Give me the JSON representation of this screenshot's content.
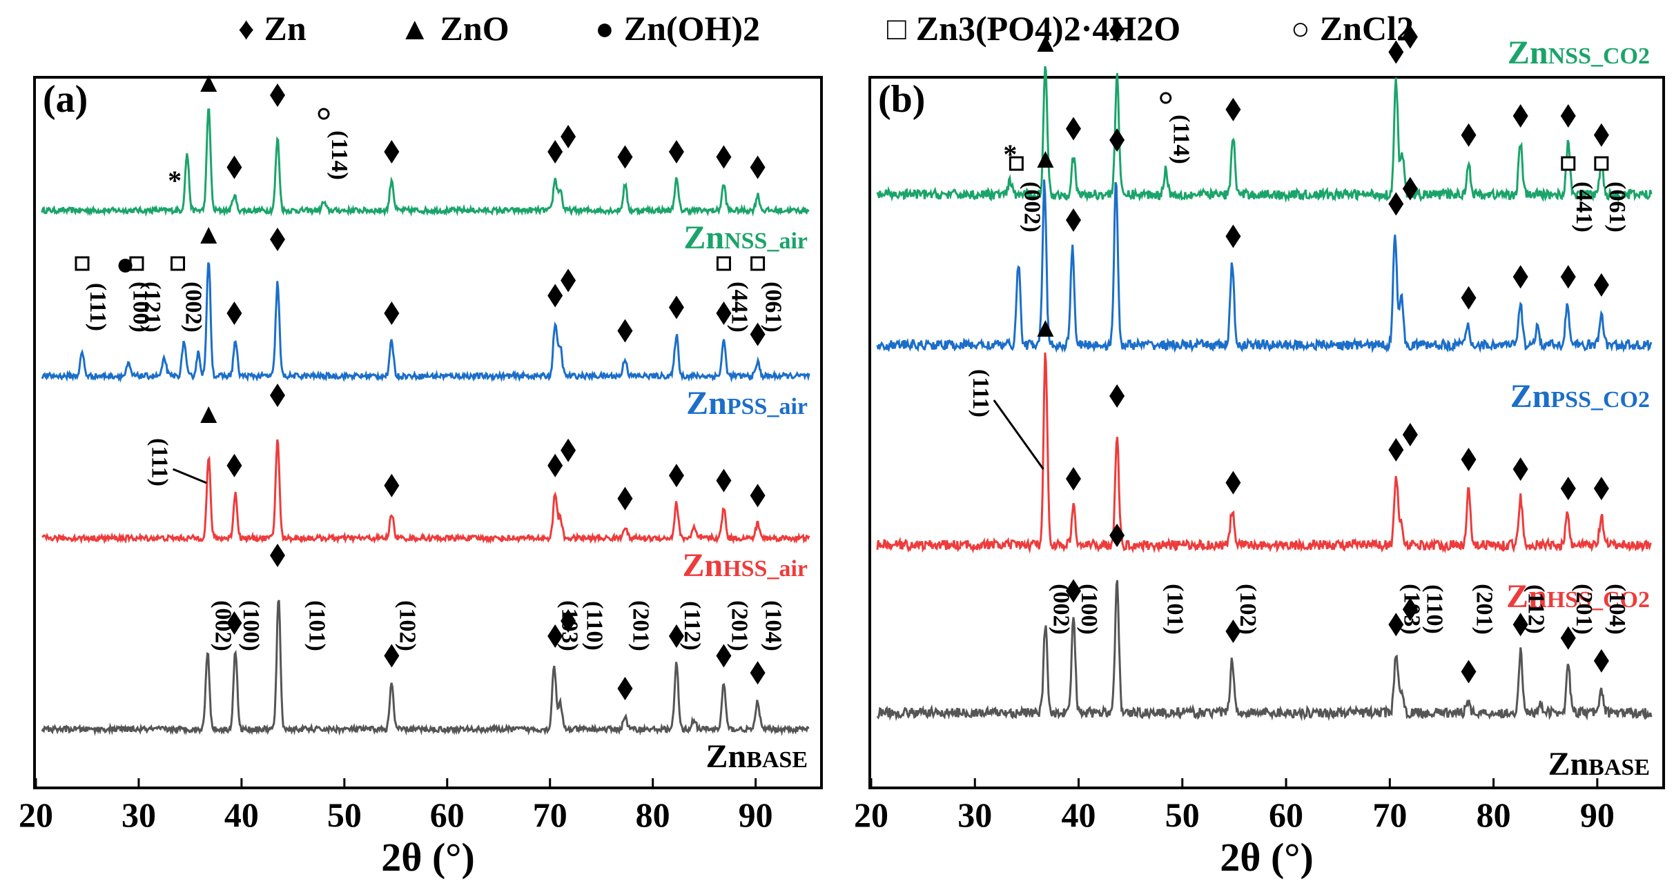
{
  "legend": [
    {
      "symbol": "♦",
      "label": "Zn",
      "sub": ""
    },
    {
      "symbol": "▲",
      "label": "ZnO",
      "sub": ""
    },
    {
      "symbol": "●",
      "label": "Zn(OH)2",
      "sub": ""
    },
    {
      "symbol": "□",
      "label": "Zn3(PO4)2·4H2O",
      "sub": ""
    },
    {
      "symbol": "○",
      "label": "ZnCl2",
      "sub": ""
    }
  ],
  "chart_data": [
    {
      "panel": "(a)",
      "type": "line",
      "xlabel": "2θ (°)",
      "xlim": [
        20,
        96
      ],
      "xticks": [
        20,
        30,
        40,
        50,
        60,
        70,
        80,
        90
      ],
      "series": [
        {
          "name": "ZnNSS_air",
          "prefix": "Zn",
          "suffix": "NSS_air",
          "color": "#1aa46a",
          "peaks": [
            [
              34.7,
              55
            ],
            [
              36.8,
              100
            ],
            [
              39.3,
              15
            ],
            [
              43.5,
              70
            ],
            [
              48.0,
              8
            ],
            [
              54.6,
              30
            ],
            [
              70.5,
              30
            ],
            [
              71.0,
              20
            ],
            [
              77.3,
              25
            ],
            [
              82.3,
              30
            ],
            [
              86.9,
              25
            ],
            [
              90.2,
              15
            ]
          ]
        },
        {
          "name": "ZnPSS_air",
          "prefix": "Zn",
          "suffix": "PSS_air",
          "color": "#1b6ec9",
          "peaks": [
            [
              24.5,
              20
            ],
            [
              29.0,
              10
            ],
            [
              32.5,
              15
            ],
            [
              34.4,
              30
            ],
            [
              35.8,
              20
            ],
            [
              36.8,
              100
            ],
            [
              39.4,
              30
            ],
            [
              43.5,
              80
            ],
            [
              54.6,
              30
            ],
            [
              70.5,
              45
            ],
            [
              71.0,
              25
            ],
            [
              77.3,
              15
            ],
            [
              82.3,
              35
            ],
            [
              86.9,
              30
            ],
            [
              90.2,
              12
            ]
          ]
        },
        {
          "name": "ZnHSS_air",
          "prefix": "Zn",
          "suffix": "HSS_air",
          "color": "#ee3b3b",
          "peaks": [
            [
              36.8,
              80
            ],
            [
              39.4,
              45
            ],
            [
              43.5,
              100
            ],
            [
              54.6,
              25
            ],
            [
              70.5,
              45
            ],
            [
              71.0,
              20
            ],
            [
              77.3,
              12
            ],
            [
              82.3,
              35
            ],
            [
              84.0,
              10
            ],
            [
              86.9,
              30
            ],
            [
              90.2,
              15
            ]
          ]
        },
        {
          "name": "ZnBASE",
          "prefix": "Zn",
          "suffix": "BASE",
          "color": "#555555",
          "peaks": [
            [
              36.7,
              60
            ],
            [
              39.4,
              60
            ],
            [
              43.6,
              100
            ],
            [
              54.6,
              35
            ],
            [
              70.4,
              50
            ],
            [
              71.0,
              20
            ],
            [
              77.3,
              10
            ],
            [
              82.3,
              50
            ],
            [
              84.0,
              8
            ],
            [
              86.9,
              35
            ],
            [
              90.2,
              22
            ]
          ]
        }
      ],
      "annotations": [
        {
          "type": "diamond",
          "x": 39.3,
          "series": 0
        },
        {
          "type": "diamond",
          "x": 43.5,
          "series": 0
        },
        {
          "type": "diamond",
          "x": 54.6,
          "series": 0
        },
        {
          "type": "diamond",
          "x": 70.5,
          "series": 0
        },
        {
          "type": "diamond",
          "x": 71.1,
          "series": 0
        },
        {
          "type": "diamond",
          "x": 77.3,
          "series": 0
        },
        {
          "type": "diamond",
          "x": 82.3,
          "series": 0
        },
        {
          "type": "diamond",
          "x": 86.9,
          "series": 0
        },
        {
          "type": "diamond",
          "x": 90.2,
          "series": 0
        }
      ],
      "hkl_labels": [
        "(002)",
        "(100)",
        "(101)",
        "(102)",
        "(103)",
        "(110)",
        "(201)",
        "(112)",
        "(201)",
        "(104)"
      ],
      "pss_labels": [
        "(111)",
        "(121)",
        "(100)",
        "(002)",
        "(441)",
        "(061)"
      ],
      "zno_label": "(111)",
      "zncl2_label": "(114)",
      "star": "*"
    },
    {
      "panel": "(b)",
      "type": "line",
      "xlabel": "2θ (°)",
      "xlim": [
        20,
        96
      ],
      "xticks": [
        20,
        30,
        40,
        50,
        60,
        70,
        80,
        90
      ],
      "series": [
        {
          "name": "ZnNSS_CO2",
          "prefix": "Zn",
          "suffix": "NSS_CO2",
          "color": "#1aa46a",
          "peaks": [
            [
              33.4,
              10
            ],
            [
              36.8,
              100
            ],
            [
              39.5,
              30
            ],
            [
              43.7,
              95
            ],
            [
              48.4,
              20
            ],
            [
              54.9,
              45
            ],
            [
              70.6,
              90
            ],
            [
              71.2,
              30
            ],
            [
              77.6,
              25
            ],
            [
              82.6,
              40
            ],
            [
              87.2,
              40
            ],
            [
              90.4,
              25
            ]
          ]
        },
        {
          "name": "ZnPSS_CO2",
          "prefix": "Zn",
          "suffix": "PSS_CO2",
          "color": "#1b6ec9",
          "peaks": [
            [
              34.2,
              50
            ],
            [
              36.7,
              100
            ],
            [
              39.4,
              60
            ],
            [
              43.6,
              100
            ],
            [
              54.8,
              50
            ],
            [
              70.5,
              70
            ],
            [
              71.1,
              30
            ],
            [
              77.5,
              12
            ],
            [
              82.6,
              25
            ],
            [
              84.2,
              10
            ],
            [
              87.1,
              25
            ],
            [
              90.4,
              20
            ]
          ]
        },
        {
          "name": "ZnHSS_CO2",
          "prefix": "Zn",
          "suffix": "HSS_CO2",
          "color": "#ee3b3b",
          "peaks": [
            [
              36.8,
              100
            ],
            [
              39.5,
              20
            ],
            [
              43.7,
              55
            ],
            [
              54.8,
              18
            ],
            [
              70.6,
              35
            ],
            [
              71.1,
              12
            ],
            [
              77.6,
              30
            ],
            [
              82.6,
              25
            ],
            [
              87.1,
              15
            ],
            [
              90.4,
              15
            ]
          ]
        },
        {
          "name": "ZnBASE",
          "prefix": "Zn",
          "suffix": "BASE",
          "color": "#555555",
          "peaks": [
            [
              36.8,
              65
            ],
            [
              39.5,
              70
            ],
            [
              43.7,
              100
            ],
            [
              54.8,
              40
            ],
            [
              70.6,
              45
            ],
            [
              71.1,
              15
            ],
            [
              77.5,
              10
            ],
            [
              82.6,
              45
            ],
            [
              84.5,
              8
            ],
            [
              87.2,
              35
            ],
            [
              90.4,
              18
            ]
          ]
        }
      ],
      "hkl_labels": [
        "(002)",
        "(100)",
        "(101)",
        "(102)",
        "(103)",
        "(110)",
        "(201)",
        "(112)",
        "(201)",
        "(104)"
      ],
      "pss_labels": [
        "(002)",
        "(441)",
        "(061)"
      ],
      "zno_label": "(111)",
      "zncl2_label": "(114)",
      "star": "*"
    }
  ]
}
